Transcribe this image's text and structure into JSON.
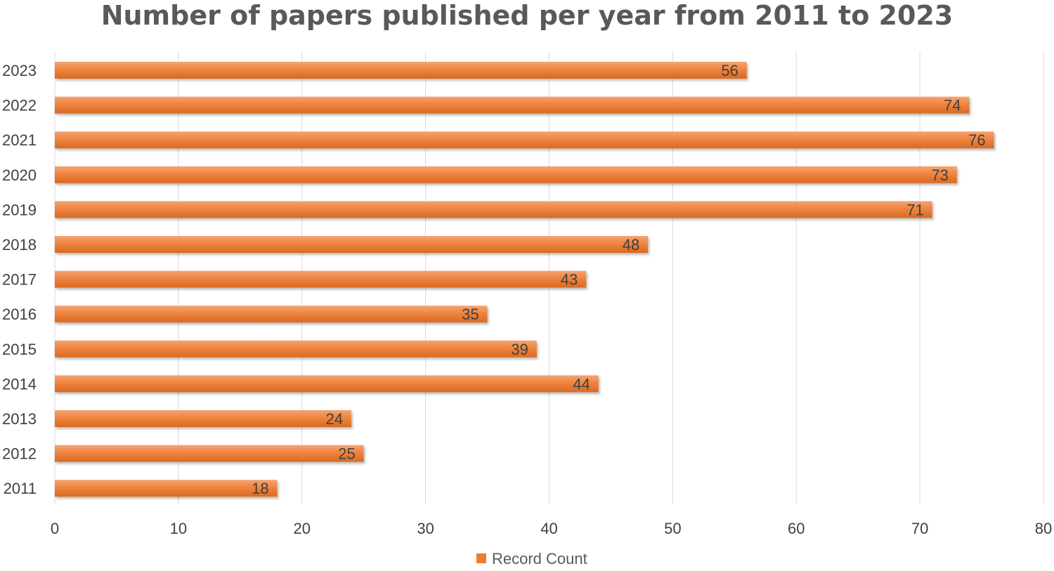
{
  "chart_data": {
    "type": "bar",
    "orientation": "horizontal",
    "title": "Number of papers published per year from 2011 to 2023",
    "categories": [
      "2023",
      "2022",
      "2021",
      "2020",
      "2019",
      "2018",
      "2017",
      "2016",
      "2015",
      "2014",
      "2013",
      "2012",
      "2011"
    ],
    "series": [
      {
        "name": "Record Count",
        "values": [
          56,
          74,
          76,
          73,
          71,
          48,
          43,
          35,
          39,
          44,
          24,
          25,
          18
        ],
        "color": "#ed7d31"
      }
    ],
    "xlabel": "",
    "ylabel": "",
    "xlim": [
      0,
      80
    ],
    "xticks": [
      0,
      10,
      20,
      30,
      40,
      50,
      60,
      70,
      80
    ],
    "grid": "vertical",
    "legend_position": "bottom",
    "data_labels": "inside-end"
  }
}
